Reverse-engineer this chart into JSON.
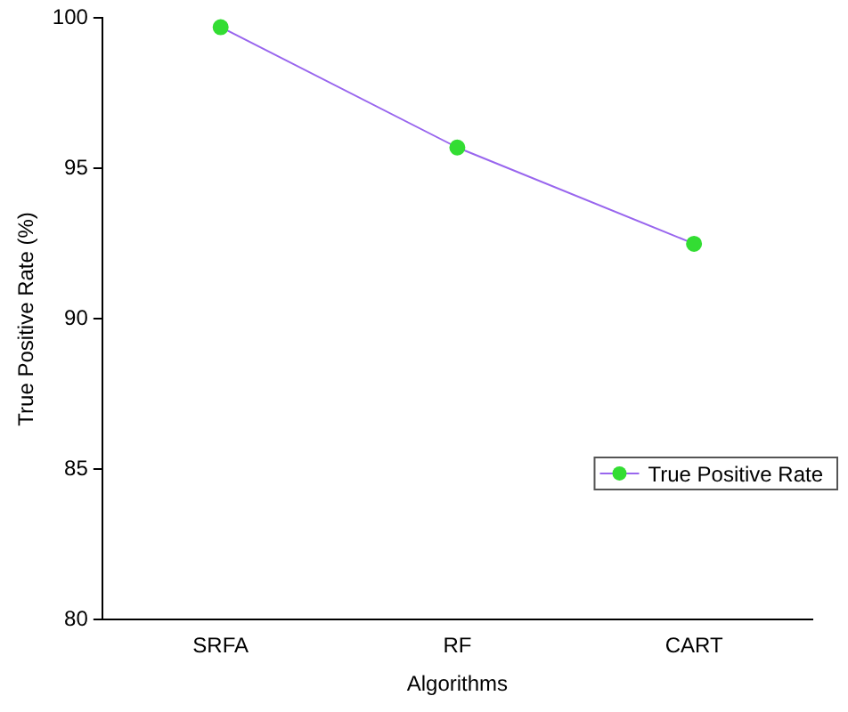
{
  "chart_data": {
    "type": "line",
    "xlabel": "Algorithms",
    "ylabel": "True Positive Rate (%)",
    "categories": [
      "SRFA",
      "RF",
      "CART"
    ],
    "series": [
      {
        "name": "True Positive Rate",
        "color": "#9966ee",
        "colors": [
          "#33dd33",
          "#33dd33",
          "#33dd33"
        ],
        "values": [
          99.7,
          95.7,
          92.5
        ]
      }
    ],
    "ylim": [
      80,
      100
    ],
    "yticks": [
      80,
      85,
      90,
      95,
      100
    ],
    "grid": false,
    "legend": "right",
    "marker": "circle",
    "line_style": "solid"
  }
}
